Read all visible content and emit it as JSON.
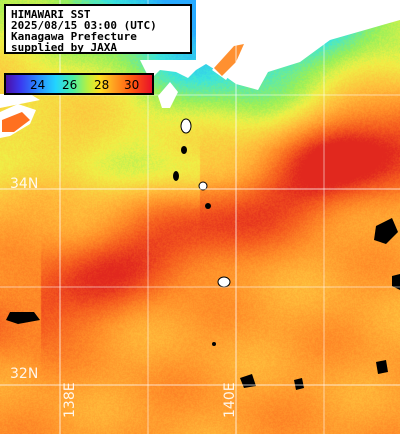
{
  "title": {
    "line1": "HIMAWARI SST",
    "line2": "2025/08/15 03:00 (UTC)",
    "line3": "Kanagawa Prefecture",
    "line4": "supplied by JAXA"
  },
  "colorbar": {
    "ticks": [
      "24",
      "26",
      "28",
      "30"
    ],
    "colors": [
      "#4b0fa8",
      "#2a8cff",
      "#22d4ff",
      "#b8f040",
      "#ffe020",
      "#ffa020",
      "#e8102a"
    ]
  },
  "grid": {
    "lat_labels": [
      "34N",
      "32N"
    ],
    "lon_labels": [
      "138E",
      "140E"
    ]
  }
}
